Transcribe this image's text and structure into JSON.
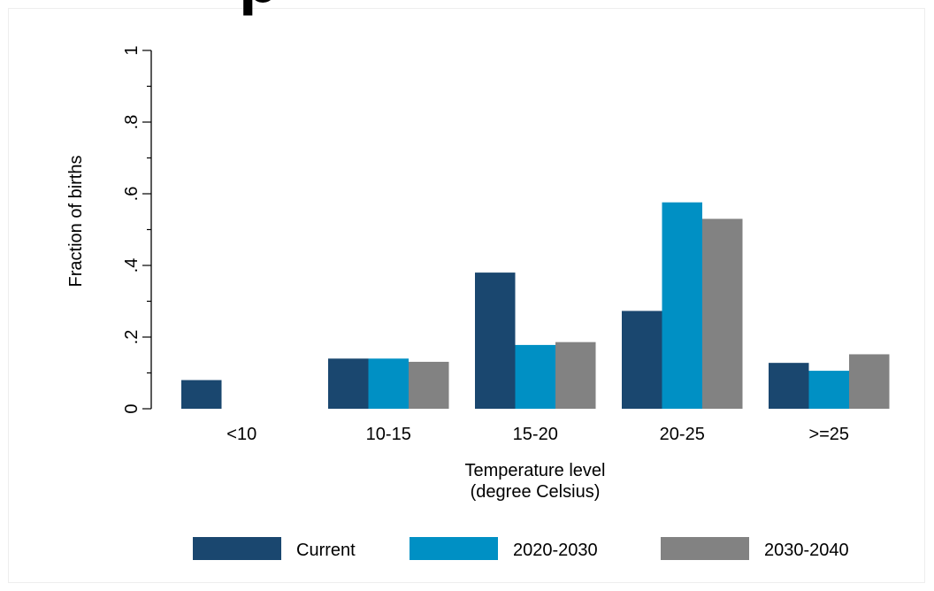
{
  "chart_data": {
    "type": "bar",
    "title": "",
    "xlabel_lines": [
      "Temperature level",
      "(degree Celsius)"
    ],
    "ylabel": "Fraction of births",
    "ylim": [
      0,
      1
    ],
    "yticks": [
      {
        "value": 0,
        "label": "0"
      },
      {
        "value": 0.2,
        "label": ".2"
      },
      {
        "value": 0.4,
        "label": ".4"
      },
      {
        "value": 0.6,
        "label": ".6"
      },
      {
        "value": 0.8,
        "label": ".8"
      },
      {
        "value": 1,
        "label": "1"
      }
    ],
    "categories": [
      "<10",
      "10-15",
      "15-20",
      "20-25",
      ">=25"
    ],
    "series": [
      {
        "name": "Current",
        "color": "#1a476f",
        "values": [
          0.08,
          0.14,
          0.38,
          0.273,
          0.128
        ]
      },
      {
        "name": "2020-2030",
        "color": "#0090c4",
        "values": [
          0,
          0.14,
          0.178,
          0.576,
          0.106
        ]
      },
      {
        "name": "2030-2040",
        "color": "#828282",
        "values": [
          0,
          0.131,
          0.186,
          0.53,
          0.152
        ]
      }
    ],
    "grid": false,
    "legend_position": "bottom"
  }
}
